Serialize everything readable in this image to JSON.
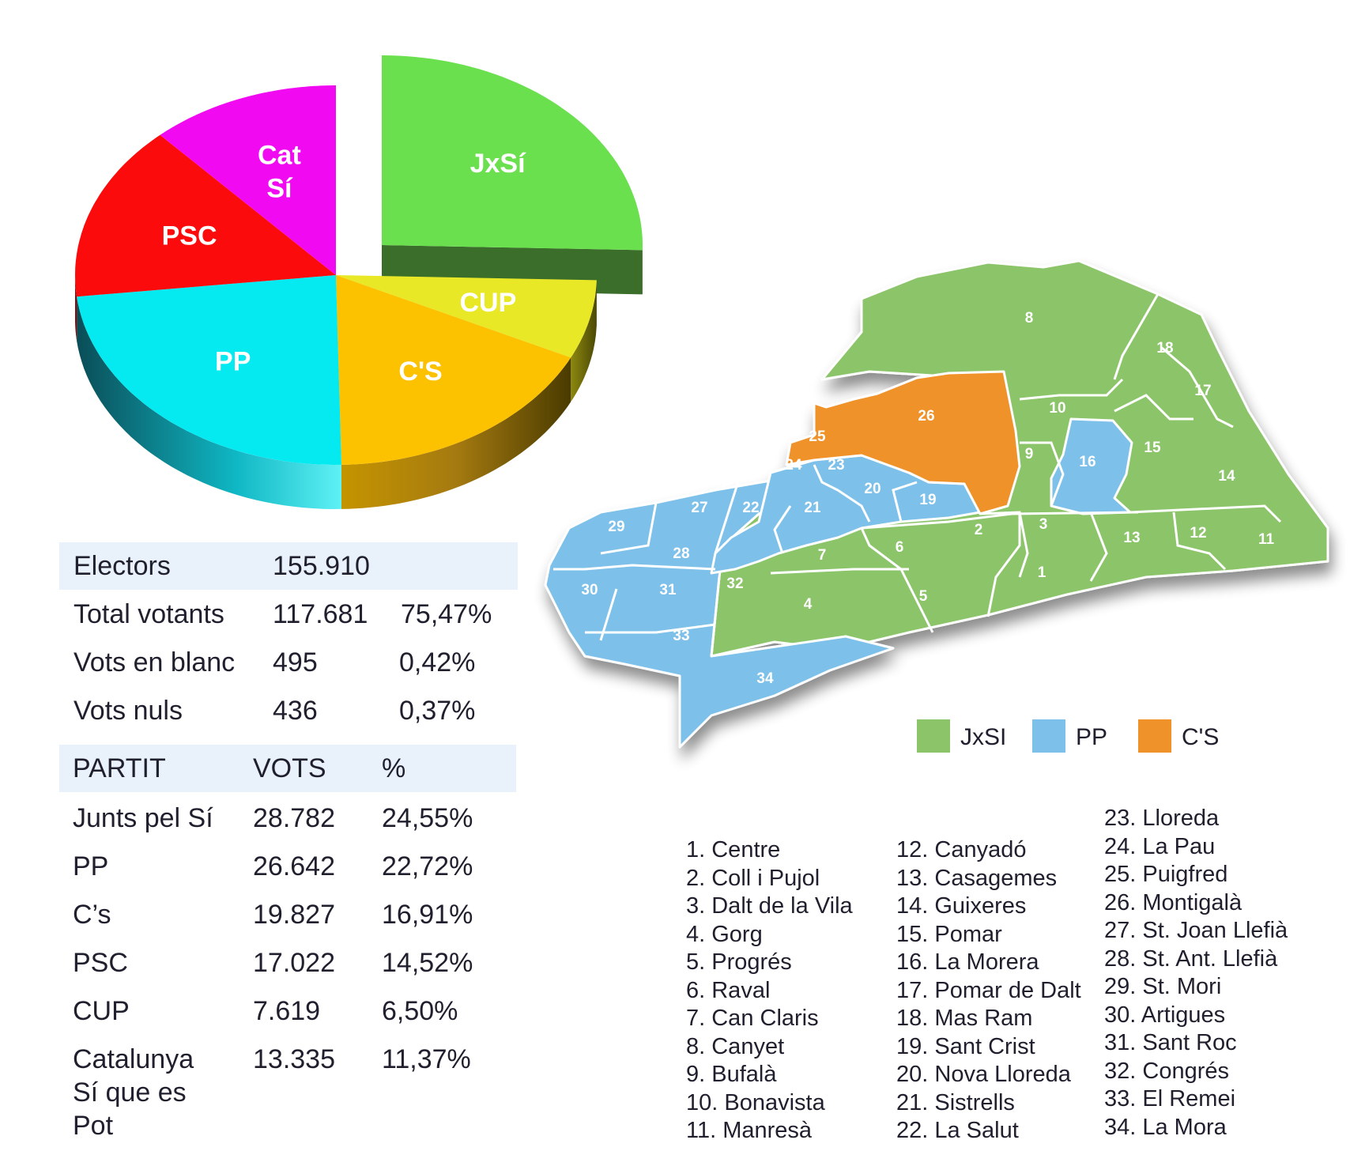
{
  "chart_data": {
    "type": "pie",
    "slices": [
      {
        "label": "JxSí",
        "color": "#6be04f",
        "side": "#3b6e2a",
        "value": 24.55
      },
      {
        "label": "CUP",
        "color": "#e9e827",
        "side": "#8f8a10",
        "value": 6.5
      },
      {
        "label": "C'S",
        "color": "#fcc200",
        "side": "#a07600",
        "value": 16.91
      },
      {
        "label": "PP",
        "color": "#04eaf0",
        "side": "#0d8a94",
        "value": 22.72
      },
      {
        "label": "PSC",
        "color": "#fb0b0b",
        "side": "#8a0a0a",
        "value": 14.52
      },
      {
        "label": "Cat Sí",
        "color": "#f109f1",
        "side": "#8a0a8a",
        "value": 11.37
      }
    ]
  },
  "summary": {
    "electors": {
      "label": "Electors",
      "value": "155.910"
    },
    "rows": [
      {
        "label": "Total  votants",
        "value": "117.681",
        "pct": "75,47%"
      },
      {
        "label": "Vots en blanc",
        "value": "495",
        "pct": "0,42%"
      },
      {
        "label": "Vots nuls",
        "value": "436",
        "pct": "0,37%"
      }
    ]
  },
  "results": {
    "headers": {
      "party": "PARTIT",
      "votes": "VOTS",
      "pct": "%"
    },
    "rows": [
      {
        "party": "Junts pel Sí",
        "votes": "28.782",
        "pct": "24,55%"
      },
      {
        "party": "PP",
        "votes": "26.642",
        "pct": "22,72%"
      },
      {
        "party": "C’s",
        "votes": "19.827",
        "pct": "16,91%"
      },
      {
        "party": "PSC",
        "votes": "17.022",
        "pct": "14,52%"
      },
      {
        "party": "CUP",
        "votes": "7.619",
        "pct": "6,50%"
      },
      {
        "party": "Catalunya",
        "party2": "Sí que es",
        "party3": "Pot",
        "votes": "13.335",
        "pct": "11,37%"
      }
    ]
  },
  "map": {
    "colors": {
      "jxsi": "#8cc46a",
      "pp": "#7dc0ea",
      "cs": "#f0922a"
    },
    "legend": [
      {
        "label": "JxSI",
        "color": "#8cc46a"
      },
      {
        "label": "PP",
        "color": "#7dc0ea"
      },
      {
        "label": "C'S",
        "color": "#f0922a"
      }
    ],
    "numbers": [
      "1",
      "2",
      "3",
      "4",
      "5",
      "6",
      "7",
      "8",
      "9",
      "10",
      "11",
      "12",
      "13",
      "14",
      "15",
      "16",
      "17",
      "18",
      "19",
      "20",
      "21",
      "22",
      "23",
      "24",
      "25",
      "26",
      "27",
      "28",
      "29",
      "30",
      "31",
      "32",
      "33",
      "34"
    ]
  },
  "neighbourhoods": {
    "col1": [
      "1. Centre",
      "2. Coll i Pujol",
      "3. Dalt de la Vila",
      "4. Gorg",
      "5. Progrés",
      "6. Raval",
      "7. Can Claris",
      "8. Canyet",
      "9. Bufalà",
      "10. Bonavista",
      "11. Manresà"
    ],
    "col2": [
      "12. Canyadó",
      "13. Casagemes",
      "14. Guixeres",
      "15. Pomar",
      "16. La Morera",
      "17. Pomar de Dalt",
      "18. Mas Ram",
      "19. Sant Crist",
      "20. Nova Lloreda",
      "21. Sistrells",
      "22. La Salut"
    ],
    "col3": [
      "23. Lloreda",
      "24. La Pau",
      "25. Puigfred",
      "26. Montigalà",
      "27. St. Joan Llefià",
      "28. St. Ant. Llefià",
      "29. St. Mori",
      "30. Artigues",
      "31. Sant Roc",
      "32. Congrés",
      "33. El Remei",
      "34. La Mora"
    ]
  }
}
